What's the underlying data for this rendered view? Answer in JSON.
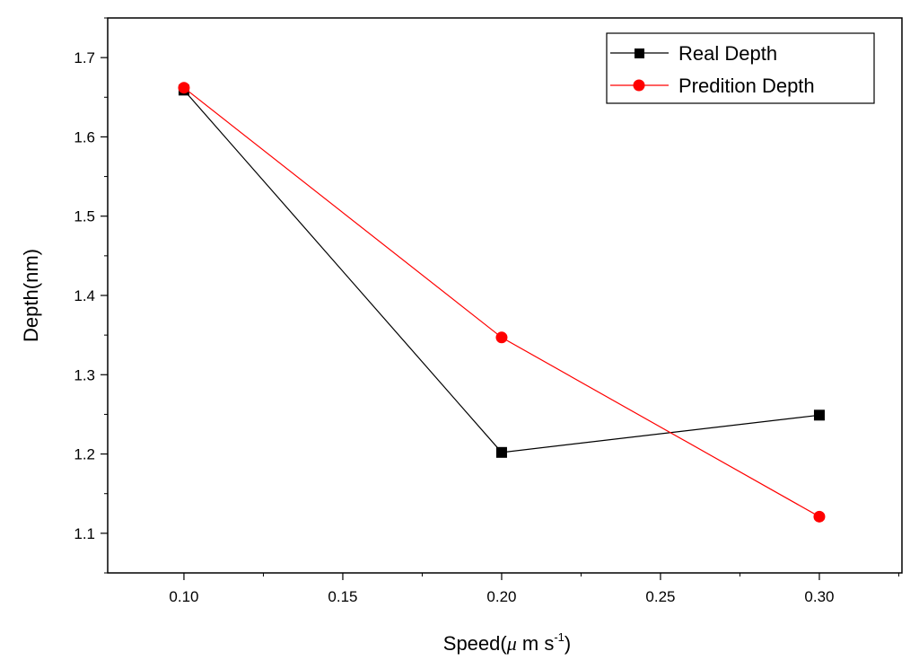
{
  "chart_data": {
    "type": "line",
    "title": "",
    "xlabel": "Speed( μ m s-1)",
    "xlabel_parts": {
      "prefix": "Speed(",
      "mu": "μ",
      "unit": " m s",
      "sup": "-1",
      "suffix": ")"
    },
    "ylabel": "Depth(nm)",
    "xlim": [
      0.076,
      0.326
    ],
    "ylim": [
      1.05,
      1.75
    ],
    "x_ticks": [
      "0.10",
      "0.15",
      "0.20",
      "0.25",
      "0.30"
    ],
    "y_ticks": [
      "1.1",
      "1.2",
      "1.3",
      "1.4",
      "1.5",
      "1.6",
      "1.7"
    ],
    "x": [
      0.1,
      0.2,
      0.3
    ],
    "series": [
      {
        "name": "Real Depth",
        "values": [
          1.659,
          1.202,
          1.249
        ],
        "color": "#000000",
        "marker": "square"
      },
      {
        "name": "Predition Depth",
        "values": [
          1.662,
          1.347,
          1.121
        ],
        "color": "#ff0000",
        "marker": "circle"
      }
    ],
    "legend_position": "top-right",
    "grid": false
  }
}
